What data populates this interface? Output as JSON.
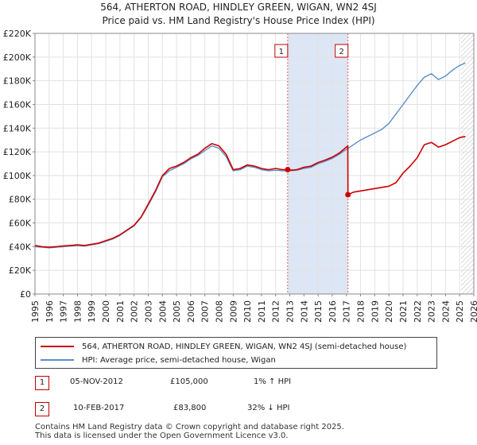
{
  "chart_data": {
    "type": "line",
    "title": "564, ATHERTON ROAD, HINDLEY GREEN, WIGAN, WN2 4SJ",
    "subtitle": "Price paid vs. HM Land Registry's House Price Index (HPI)",
    "xlim": [
      1995,
      2026
    ],
    "ylim": [
      0,
      220000
    ],
    "yticks": [
      {
        "value": 0,
        "label": "£0"
      },
      {
        "value": 20000,
        "label": "£20K"
      },
      {
        "value": 40000,
        "label": "£40K"
      },
      {
        "value": 60000,
        "label": "£60K"
      },
      {
        "value": 80000,
        "label": "£80K"
      },
      {
        "value": 100000,
        "label": "£100K"
      },
      {
        "value": 120000,
        "label": "£120K"
      },
      {
        "value": 140000,
        "label": "£140K"
      },
      {
        "value": 160000,
        "label": "£160K"
      },
      {
        "value": 180000,
        "label": "£180K"
      },
      {
        "value": 200000,
        "label": "£200K"
      },
      {
        "value": 220000,
        "label": "£220K"
      }
    ],
    "xticks": [
      "1995",
      "1996",
      "1997",
      "1998",
      "1999",
      "2000",
      "2001",
      "2002",
      "2003",
      "2004",
      "2005",
      "2006",
      "2007",
      "2008",
      "2009",
      "2010",
      "2011",
      "2012",
      "2013",
      "2014",
      "2015",
      "2016",
      "2017",
      "2018",
      "2019",
      "2020",
      "2021",
      "2022",
      "2023",
      "2024",
      "2025",
      "2026"
    ],
    "series": [
      {
        "name": "564, ATHERTON ROAD, HINDLEY GREEN, WIGAN, WN2 4SJ (semi-detached house)",
        "color": "#cc0000",
        "x": [
          1995.0,
          1995.5,
          1996.0,
          1996.5,
          1997.0,
          1997.5,
          1998.0,
          1998.5,
          1999.0,
          1999.5,
          2000.0,
          2000.5,
          2001.0,
          2001.5,
          2002.0,
          2002.5,
          2003.0,
          2003.5,
          2004.0,
          2004.5,
          2005.0,
          2005.5,
          2006.0,
          2006.5,
          2007.0,
          2007.5,
          2008.0,
          2008.5,
          2009.0,
          2009.5,
          2010.0,
          2010.5,
          2011.0,
          2011.5,
          2012.0,
          2012.5,
          2012.85,
          2013.0,
          2013.5,
          2014.0,
          2014.5,
          2015.0,
          2015.5,
          2016.0,
          2016.5,
          2017.0,
          2017.1,
          2017.11,
          2017.5,
          2018.0,
          2018.5,
          2019.0,
          2019.5,
          2020.0,
          2020.5,
          2021.0,
          2021.5,
          2022.0,
          2022.5,
          2023.0,
          2023.5,
          2024.0,
          2024.5,
          2025.0,
          2025.4
        ],
        "y": [
          41000,
          40000,
          39500,
          40000,
          40500,
          41000,
          41500,
          41000,
          42000,
          43000,
          45000,
          47000,
          50000,
          54000,
          58000,
          65000,
          76000,
          87000,
          100000,
          106000,
          108000,
          111000,
          115000,
          118000,
          123000,
          127000,
          125000,
          118000,
          105000,
          106000,
          109000,
          108000,
          106000,
          105000,
          106000,
          105000,
          105000,
          104500,
          105000,
          107000,
          108000,
          111000,
          113000,
          115500,
          119000,
          124000,
          125000,
          83800,
          86000,
          87000,
          88000,
          89000,
          90000,
          91000,
          94000,
          102000,
          108000,
          115000,
          126000,
          128000,
          124000,
          126000,
          129000,
          132000,
          133000
        ]
      },
      {
        "name": "HPI: Average price, semi-detached house, Wigan",
        "color": "#5b8dc9",
        "x": [
          1995.0,
          1995.5,
          1996.0,
          1996.5,
          1997.0,
          1997.5,
          1998.0,
          1998.5,
          1999.0,
          1999.5,
          2000.0,
          2000.5,
          2001.0,
          2001.5,
          2002.0,
          2002.5,
          2003.0,
          2003.5,
          2004.0,
          2004.5,
          2005.0,
          2005.5,
          2006.0,
          2006.5,
          2007.0,
          2007.5,
          2008.0,
          2008.5,
          2009.0,
          2009.5,
          2010.0,
          2010.5,
          2011.0,
          2011.5,
          2012.0,
          2012.5,
          2013.0,
          2013.5,
          2014.0,
          2014.5,
          2015.0,
          2015.5,
          2016.0,
          2016.5,
          2017.0,
          2017.5,
          2018.0,
          2018.5,
          2019.0,
          2019.5,
          2020.0,
          2020.5,
          2021.0,
          2021.5,
          2022.0,
          2022.5,
          2023.0,
          2023.5,
          2024.0,
          2024.5,
          2025.0,
          2025.4
        ],
        "y": [
          40000,
          39500,
          39000,
          39500,
          40000,
          40500,
          41000,
          40500,
          41500,
          42500,
          44500,
          46500,
          49500,
          53500,
          57500,
          64500,
          75000,
          86000,
          99000,
          104000,
          107000,
          110000,
          114000,
          117000,
          121000,
          125000,
          123000,
          116000,
          104000,
          105000,
          108000,
          107000,
          105000,
          104000,
          104500,
          104000,
          104000,
          104500,
          106000,
          107000,
          110000,
          112000,
          114500,
          118000,
          122000,
          126000,
          130000,
          133000,
          136000,
          139000,
          144000,
          152000,
          160000,
          168000,
          176000,
          183000,
          186000,
          181000,
          184000,
          189000,
          193000,
          195000
        ]
      }
    ],
    "annotations": [
      {
        "label": "1",
        "x": 2012.85
      },
      {
        "label": "2",
        "x": 2017.11
      }
    ],
    "shaded_span": [
      2012.85,
      2017.11
    ],
    "sale_points": [
      {
        "x": 2012.85,
        "y": 105000
      },
      {
        "x": 2017.11,
        "y": 83800
      }
    ],
    "hatched_from": 2025.1
  },
  "legend": {
    "property_label": "564, ATHERTON ROAD, HINDLEY GREEN, WIGAN, WN2 4SJ (semi-detached house)",
    "hpi_label": "HPI: Average price, semi-detached house, Wigan"
  },
  "transactions": [
    {
      "num": "1",
      "date": "05-NOV-2012",
      "price": "£105,000",
      "hpi": "1% ↑ HPI"
    },
    {
      "num": "2",
      "date": "10-FEB-2017",
      "price": "£83,800",
      "hpi": "32% ↓ HPI"
    }
  ],
  "footer": {
    "line1": "Contains HM Land Registry data © Crown copyright and database right 2025.",
    "line2": "This data is licensed under the Open Government Licence v3.0."
  }
}
